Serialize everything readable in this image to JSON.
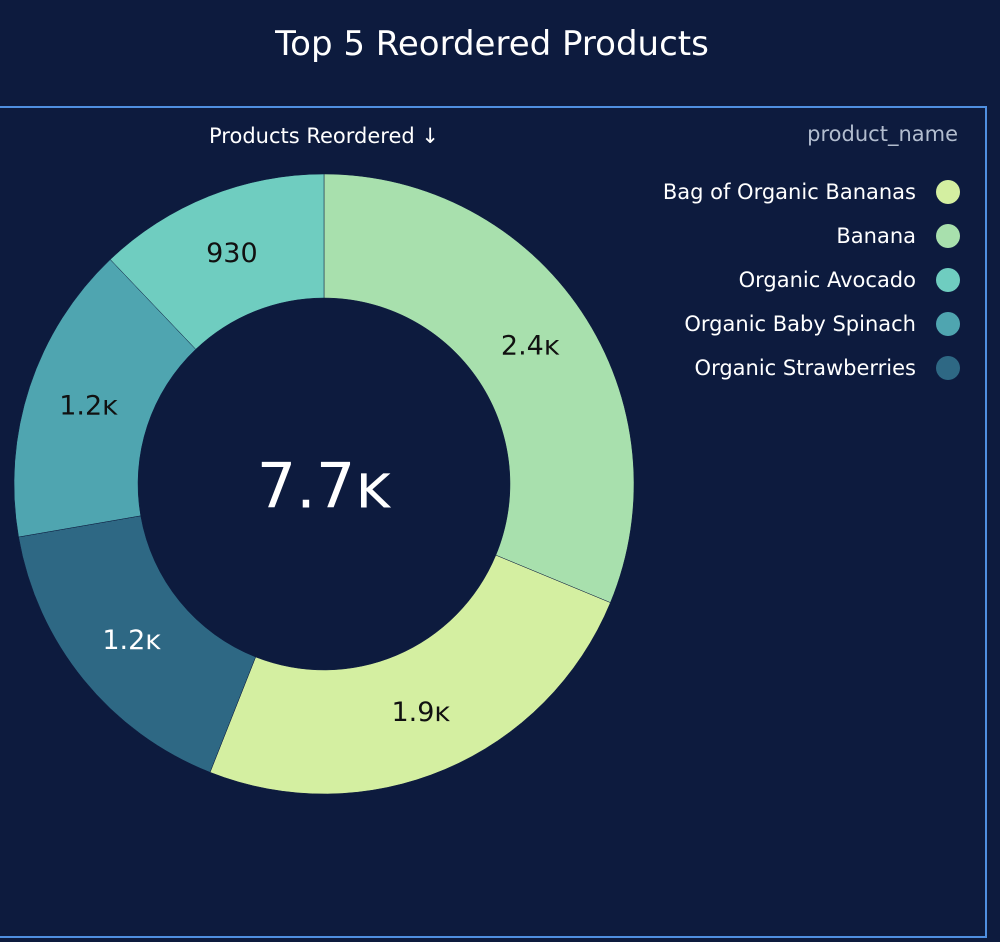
{
  "title": "Top 5 Reordered Products",
  "measure_label": "Products Reordered ↓",
  "legend": {
    "title": "product_name"
  },
  "colors": {
    "background": "#0d1b3e",
    "frame": "#4f8fe0"
  },
  "chart_data": {
    "type": "pie",
    "donut": true,
    "title": "Top 5 Reordered Products",
    "measure": "Products Reordered ↓",
    "legend_title": "product_name",
    "legend_position": "top-right",
    "total_label": "7.7ĸ",
    "slices": [
      {
        "name": "Banana",
        "value": 2400,
        "label": "2.4ĸ",
        "color": "#a8e0ad",
        "label_color": "#111111"
      },
      {
        "name": "Bag of Organic Bananas",
        "value": 1900,
        "label": "1.9ĸ",
        "color": "#d4efa1",
        "label_color": "#111111"
      },
      {
        "name": "Organic Strawberries",
        "value": 1250,
        "label": "1.2ĸ",
        "color": "#2e6884",
        "label_color": "#ffffff"
      },
      {
        "name": "Organic Baby Spinach",
        "value": 1200,
        "label": "1.2ĸ",
        "color": "#4fa5b0",
        "label_color": "#111111"
      },
      {
        "name": "Organic Avocado",
        "value": 930,
        "label": "930",
        "color": "#6fcdc0",
        "label_color": "#111111"
      }
    ],
    "legend_order": [
      "Bag of Organic Bananas",
      "Banana",
      "Organic Avocado",
      "Organic Baby Spinach",
      "Organic Strawberries"
    ]
  }
}
